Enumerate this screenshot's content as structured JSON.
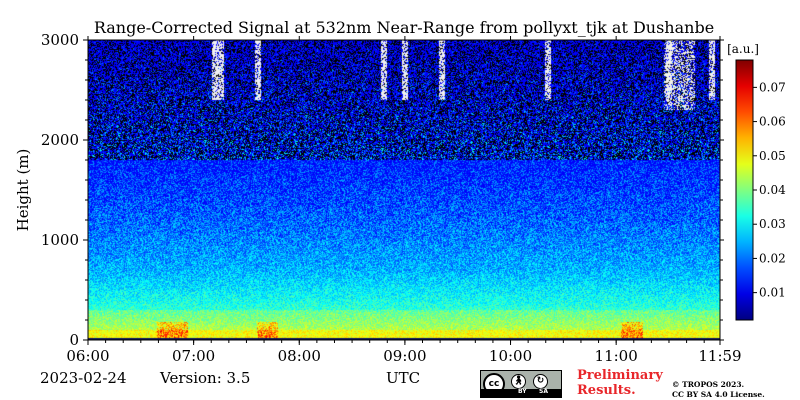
{
  "chart_data": {
    "type": "heatmap",
    "title": "Range-Corrected Signal at 532nm Near-Range from pollyxt_tjk at Dushanbe",
    "xlabel": "UTC",
    "ylabel": "Height (m)",
    "x_tick_labels": [
      "06:00",
      "07:00",
      "08:00",
      "09:00",
      "10:00",
      "11:00",
      "11:59"
    ],
    "x_tick_values_hours": [
      6,
      7,
      8,
      9,
      10,
      11,
      11.983
    ],
    "xlim_hours": [
      6,
      11.983
    ],
    "ylim": [
      0,
      3000
    ],
    "y_ticks": [
      0,
      1000,
      2000,
      3000
    ],
    "colorbar": {
      "label": "[a.u.]",
      "ticks": [
        0.01,
        0.02,
        0.03,
        0.04,
        0.05,
        0.06,
        0.07
      ],
      "range": [
        0.002,
        0.078
      ],
      "colormap": "jet"
    },
    "features": {
      "near_surface_high_signal_heights_m": [
        0,
        300
      ],
      "aerosol_layer_top_m": 700,
      "noise_dominated_above_m": 1800,
      "cloud_streaks_times_hours": [
        7.2,
        7.25,
        7.6,
        8.8,
        9.0,
        9.35,
        10.35,
        11.5,
        11.9
      ]
    }
  },
  "footer": {
    "date": "2023-02-24",
    "version": "Version: 3.5",
    "preliminary": "Preliminary Results.",
    "copyright_line1": "© TROPOS 2023.",
    "copyright_line2": "CC BY SA 4.0 License.",
    "cc_text": "cc",
    "cc_by": "BY",
    "cc_sa": "SA"
  }
}
